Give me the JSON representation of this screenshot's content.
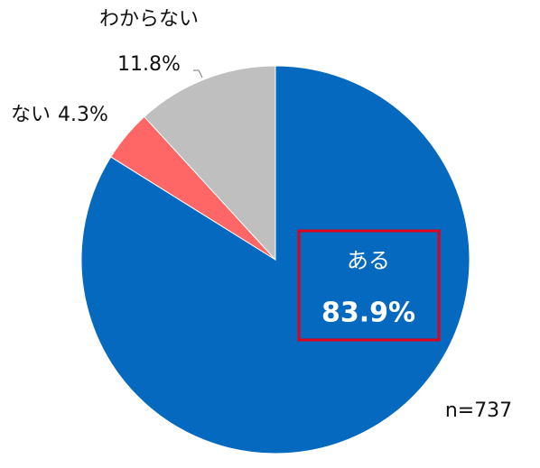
{
  "chart_data": {
    "type": "pie",
    "categories": [
      "ある",
      "ない",
      "わからない"
    ],
    "values": [
      83.9,
      4.3,
      11.8
    ],
    "value_labels": [
      "83.9%",
      "4.3%",
      "11.8%"
    ],
    "colors": [
      "#0569bf",
      "#ff6666",
      "#bfbfbf"
    ],
    "annotation": "n=737"
  }
}
